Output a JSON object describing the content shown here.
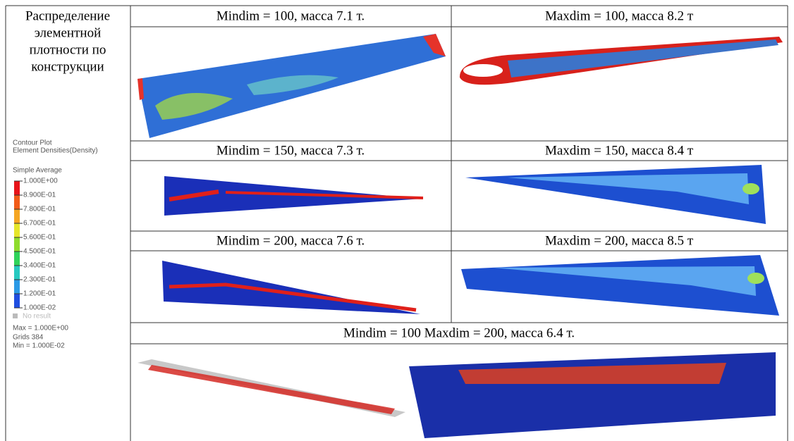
{
  "left": {
    "title_lines": [
      "Распределение",
      "элементной",
      "плотности по",
      "конструкции"
    ],
    "legend": {
      "title": "Contour Plot",
      "subtitle": "Element Densities(Density)",
      "method": "Simple Average",
      "levels": [
        "1.000E+00",
        "8.900E-01",
        "7.800E-01",
        "6.700E-01",
        "5.600E-01",
        "4.500E-01",
        "3.400E-01",
        "2.300E-01",
        "1.200E-01",
        "1.000E-02"
      ],
      "no_result": "No result",
      "max": "Max = 1.000E+00",
      "grids": "Grids 384",
      "min": "Min = 1.000E-02"
    }
  },
  "table": {
    "cells": [
      "Mindim = 100, масса 7.1 т.",
      "Maxdim = 100, масса 8.2 т",
      "Mindim = 150, масса 7.3 т.",
      "Maxdim = 150, масса 8.4 т",
      "Mindim = 200, масса 7.6 т.",
      "Maxdim = 200, масса 8.5 т",
      "Mindim = 100 Maxdim = 200, масса 6.4 т."
    ]
  }
}
